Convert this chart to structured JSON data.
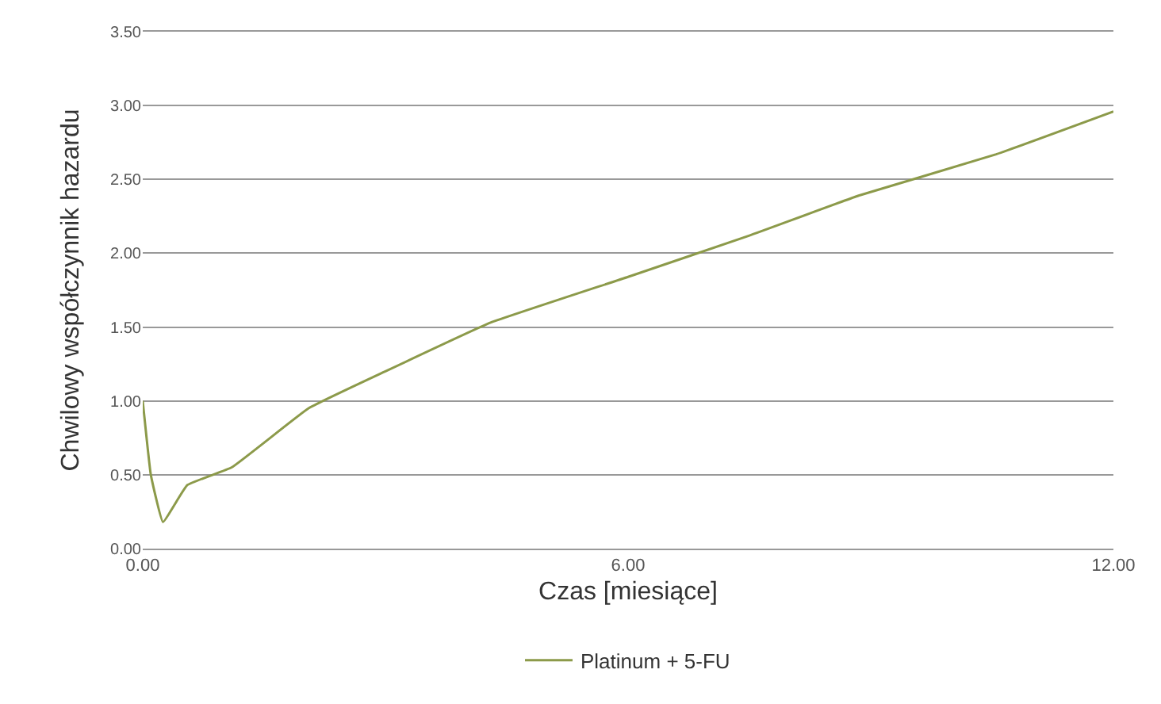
{
  "chart_data": {
    "type": "line",
    "xlabel": "Czas [miesiące]",
    "ylabel": "Chwilowy współczynnik hazardu",
    "x": [
      0,
      0.1,
      0.25,
      0.55,
      1.1,
      2.05,
      3.0,
      4.3,
      6.0,
      7.5,
      8.85,
      10.55,
      12.0
    ],
    "series": [
      {
        "name": "Platinum + 5-FU",
        "color": "#8c9a4a",
        "values": [
          1.0,
          0.5,
          0.18,
          0.43,
          0.55,
          0.95,
          1.2,
          1.53,
          1.84,
          2.12,
          2.39,
          2.67,
          2.96
        ]
      }
    ],
    "xlim": [
      0,
      12
    ],
    "xticks": [
      {
        "value": 0,
        "label": "0.00"
      },
      {
        "value": 6,
        "label": "6.00"
      },
      {
        "value": 12,
        "label": "12.00"
      }
    ],
    "ylim": [
      0,
      3.5
    ],
    "yticks": [
      {
        "value": 0,
        "label": "0.00"
      },
      {
        "value": 0.5,
        "label": "0.50"
      },
      {
        "value": 1,
        "label": "1.00"
      },
      {
        "value": 1.5,
        "label": "1.50"
      },
      {
        "value": 2,
        "label": "2.00"
      },
      {
        "value": 2.5,
        "label": "2.50"
      },
      {
        "value": 3,
        "label": "3.00"
      },
      {
        "value": 3.5,
        "label": "3.50"
      }
    ],
    "grid": "y",
    "legend": "bottom",
    "marker": "none",
    "line_style": "solid"
  }
}
